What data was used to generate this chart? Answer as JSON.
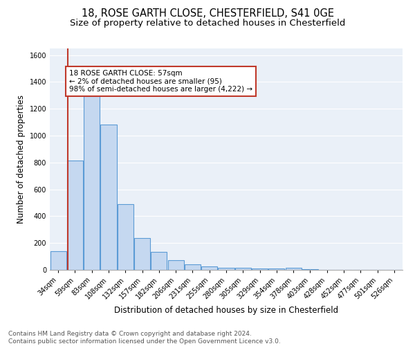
{
  "title1": "18, ROSE GARTH CLOSE, CHESTERFIELD, S41 0GE",
  "title2": "Size of property relative to detached houses in Chesterfield",
  "xlabel": "Distribution of detached houses by size in Chesterfield",
  "ylabel": "Number of detached properties",
  "footnote": "Contains HM Land Registry data © Crown copyright and database right 2024.\nContains public sector information licensed under the Open Government Licence v3.0.",
  "bar_labels": [
    "34sqm",
    "59sqm",
    "83sqm",
    "108sqm",
    "132sqm",
    "157sqm",
    "182sqm",
    "206sqm",
    "231sqm",
    "255sqm",
    "280sqm",
    "305sqm",
    "329sqm",
    "354sqm",
    "378sqm",
    "403sqm",
    "428sqm",
    "452sqm",
    "477sqm",
    "501sqm",
    "526sqm"
  ],
  "bar_heights": [
    140,
    815,
    1295,
    1085,
    490,
    235,
    135,
    73,
    42,
    28,
    18,
    13,
    10,
    8,
    18,
    5,
    0,
    0,
    0,
    0,
    0
  ],
  "bar_color": "#c5d8f0",
  "bar_edge_color": "#5b9bd5",
  "vline_color": "#c0392b",
  "annotation_text": "18 ROSE GARTH CLOSE: 57sqm\n← 2% of detached houses are smaller (95)\n98% of semi-detached houses are larger (4,222) →",
  "annotation_box_color": "#ffffff",
  "annotation_box_edge_color": "#c0392b",
  "ylim": [
    0,
    1650
  ],
  "yticks": [
    0,
    200,
    400,
    600,
    800,
    1000,
    1200,
    1400,
    1600
  ],
  "bg_color": "#eaf0f8",
  "grid_color": "#ffffff",
  "title1_fontsize": 10.5,
  "title2_fontsize": 9.5,
  "xlabel_fontsize": 8.5,
  "ylabel_fontsize": 8.5,
  "tick_fontsize": 7,
  "annot_fontsize": 7.5,
  "footnote_fontsize": 6.5
}
